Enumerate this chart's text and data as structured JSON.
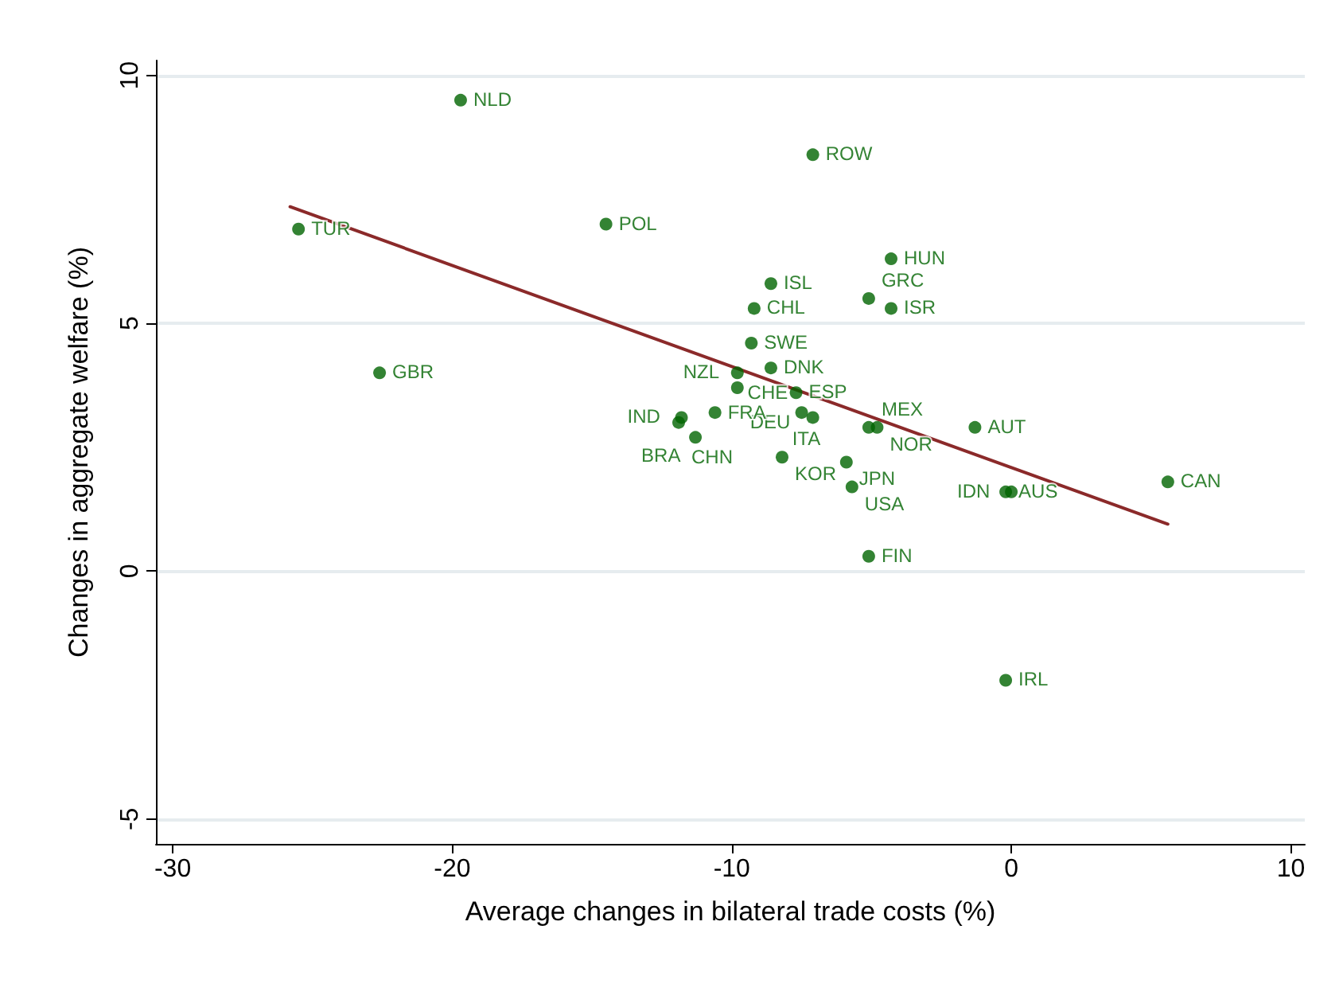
{
  "chart_data": {
    "type": "scatter",
    "xlabel": "Average changes in bilateral trade costs (%)",
    "ylabel": "Changes in aggregate welfare (%)",
    "xlim": [
      -30.6,
      10.5
    ],
    "ylim": [
      -5.5,
      10.3
    ],
    "xticks": [
      -30,
      -20,
      -10,
      0,
      10
    ],
    "yticks": [
      -5,
      0,
      5,
      10
    ],
    "grid": "y",
    "marker": "circle",
    "series": [
      {
        "color": "#006400",
        "x": [
          -19.7,
          -7.1,
          -25.5,
          -14.5,
          -4.3,
          -8.6,
          -9.2,
          -5.1,
          -4.3,
          -9.3,
          -22.6,
          -8.6,
          -9.8,
          -9.8,
          -7.7,
          -7.5,
          -7.1,
          -11.8,
          -11.9,
          -10.6,
          -11.3,
          -5.1,
          -4.8,
          -1.3,
          -8.2,
          -5.9,
          -5.7,
          -0.2,
          0.0,
          5.6,
          -5.1,
          -0.2
        ],
        "values": [
          9.5,
          8.4,
          6.9,
          7.0,
          6.3,
          5.8,
          5.3,
          5.5,
          5.3,
          4.6,
          4.0,
          4.1,
          4.0,
          3.7,
          3.6,
          3.2,
          3.1,
          3.1,
          3.0,
          3.2,
          2.7,
          2.9,
          2.9,
          2.9,
          2.3,
          2.2,
          1.7,
          1.6,
          1.6,
          1.8,
          0.3,
          -2.2
        ],
        "value_labels": [
          "NLD",
          "ROW",
          "TUR",
          "POL",
          "HUN",
          "ISL",
          "CHL",
          "GRC",
          "ISR",
          "SWE",
          "GBR",
          "DNK",
          "NZL",
          "DEU",
          "ESP",
          "CHE",
          "ITA",
          "IND",
          "CHN",
          "FRA",
          "BRA",
          "MEX",
          "NOR",
          "AUT",
          "KOR",
          "JPN",
          "USA",
          "AUS",
          "IDN",
          "CAN",
          "FIN",
          "IRL"
        ]
      },
      {
        "type": "line",
        "color": "#8b2a2a",
        "marker": "none",
        "line_style": "solid",
        "x": [
          -25.8,
          5.6
        ],
        "values": [
          7.35,
          0.95
        ]
      }
    ]
  }
}
